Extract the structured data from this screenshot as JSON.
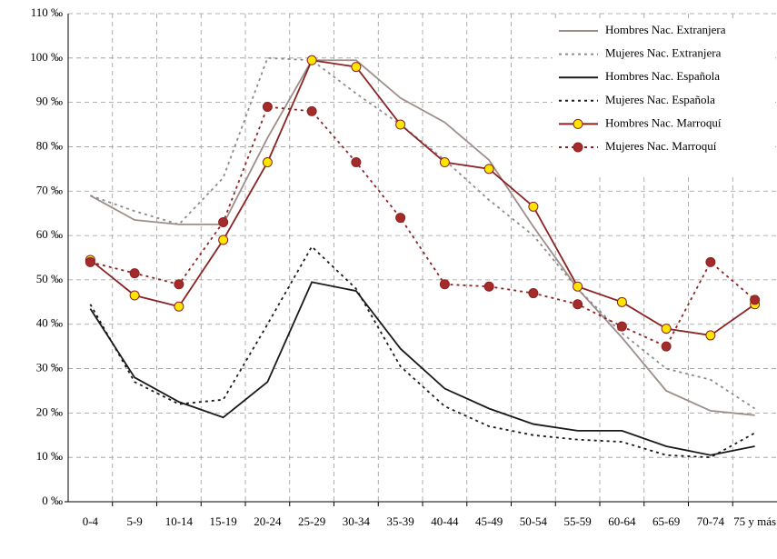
{
  "chart_data": {
    "type": "line",
    "categories": [
      "0-4",
      "5-9",
      "10-14",
      "15-19",
      "20-24",
      "25-29",
      "30-34",
      "35-39",
      "40-44",
      "45-49",
      "50-54",
      "55-59",
      "60-64",
      "65-69",
      "70-74",
      "75 y más"
    ],
    "ylim": [
      0,
      110
    ],
    "yticks": [
      {
        "value": 0,
        "label": "0 ‰"
      },
      {
        "value": 10,
        "label": "10 ‰"
      },
      {
        "value": 20,
        "label": "20 ‰"
      },
      {
        "value": 30,
        "label": "30 ‰"
      },
      {
        "value": 40,
        "label": "40 ‰"
      },
      {
        "value": 50,
        "label": "50 ‰"
      },
      {
        "value": 60,
        "label": "60 ‰"
      },
      {
        "value": 70,
        "label": "70 ‰"
      },
      {
        "value": 80,
        "label": "80 ‰"
      },
      {
        "value": 90,
        "label": "90 ‰"
      },
      {
        "value": 100,
        "label": "100 ‰"
      },
      {
        "value": 110,
        "label": "110 ‰"
      }
    ],
    "grid": true,
    "legend": "top-right",
    "series": [
      {
        "name": "Hombres Nac. Extranjera",
        "color": "#9e8e8a",
        "dash": false,
        "values": [
          69,
          63.5,
          62.5,
          62.5,
          82,
          99.5,
          99.5,
          91,
          85.5,
          77,
          62,
          48,
          37,
          25,
          20.5,
          19.5
        ]
      },
      {
        "name": "Mujeres Nac. Extranjera",
        "color": "#8c8c8c",
        "dash": true,
        "values": [
          69,
          65.5,
          62.5,
          73,
          100,
          99.5,
          92,
          85,
          77,
          68,
          60,
          48,
          38,
          30,
          27.5,
          21
        ]
      },
      {
        "name": "Hombres Nac. Española",
        "color": "#1a1a1a",
        "dash": false,
        "values": [
          43.5,
          28,
          22.5,
          19,
          27,
          49.5,
          47.5,
          34.5,
          25.5,
          21,
          17.5,
          16,
          16,
          12.5,
          10.5,
          12.5
        ]
      },
      {
        "name": "Mujeres Nac. Española",
        "color": "#1a1a1a",
        "dash": true,
        "values": [
          44.5,
          27,
          22,
          23,
          40,
          57.5,
          48,
          30.5,
          21.5,
          17,
          15,
          14,
          13.5,
          10.5,
          10,
          15.5
        ]
      },
      {
        "name": "Hombres Nac. Marroquí",
        "color": "#8b2323",
        "dash": false,
        "marker": "circle",
        "marker_color": "#ffe600",
        "values": [
          54.5,
          46.5,
          44,
          59,
          76.5,
          99.5,
          98,
          85,
          76.5,
          75,
          66.5,
          48.5,
          45,
          39,
          37.5,
          44.5
        ]
      },
      {
        "name": "Mujeres Nac. Marroquí",
        "color": "#8b2323",
        "dash": true,
        "marker": "circle",
        "marker_color": "#a52a2a",
        "values": [
          54,
          51.5,
          49,
          63,
          89,
          88,
          76.5,
          64,
          49,
          48.5,
          47,
          44.5,
          39.5,
          35,
          54,
          45.5
        ]
      }
    ]
  }
}
